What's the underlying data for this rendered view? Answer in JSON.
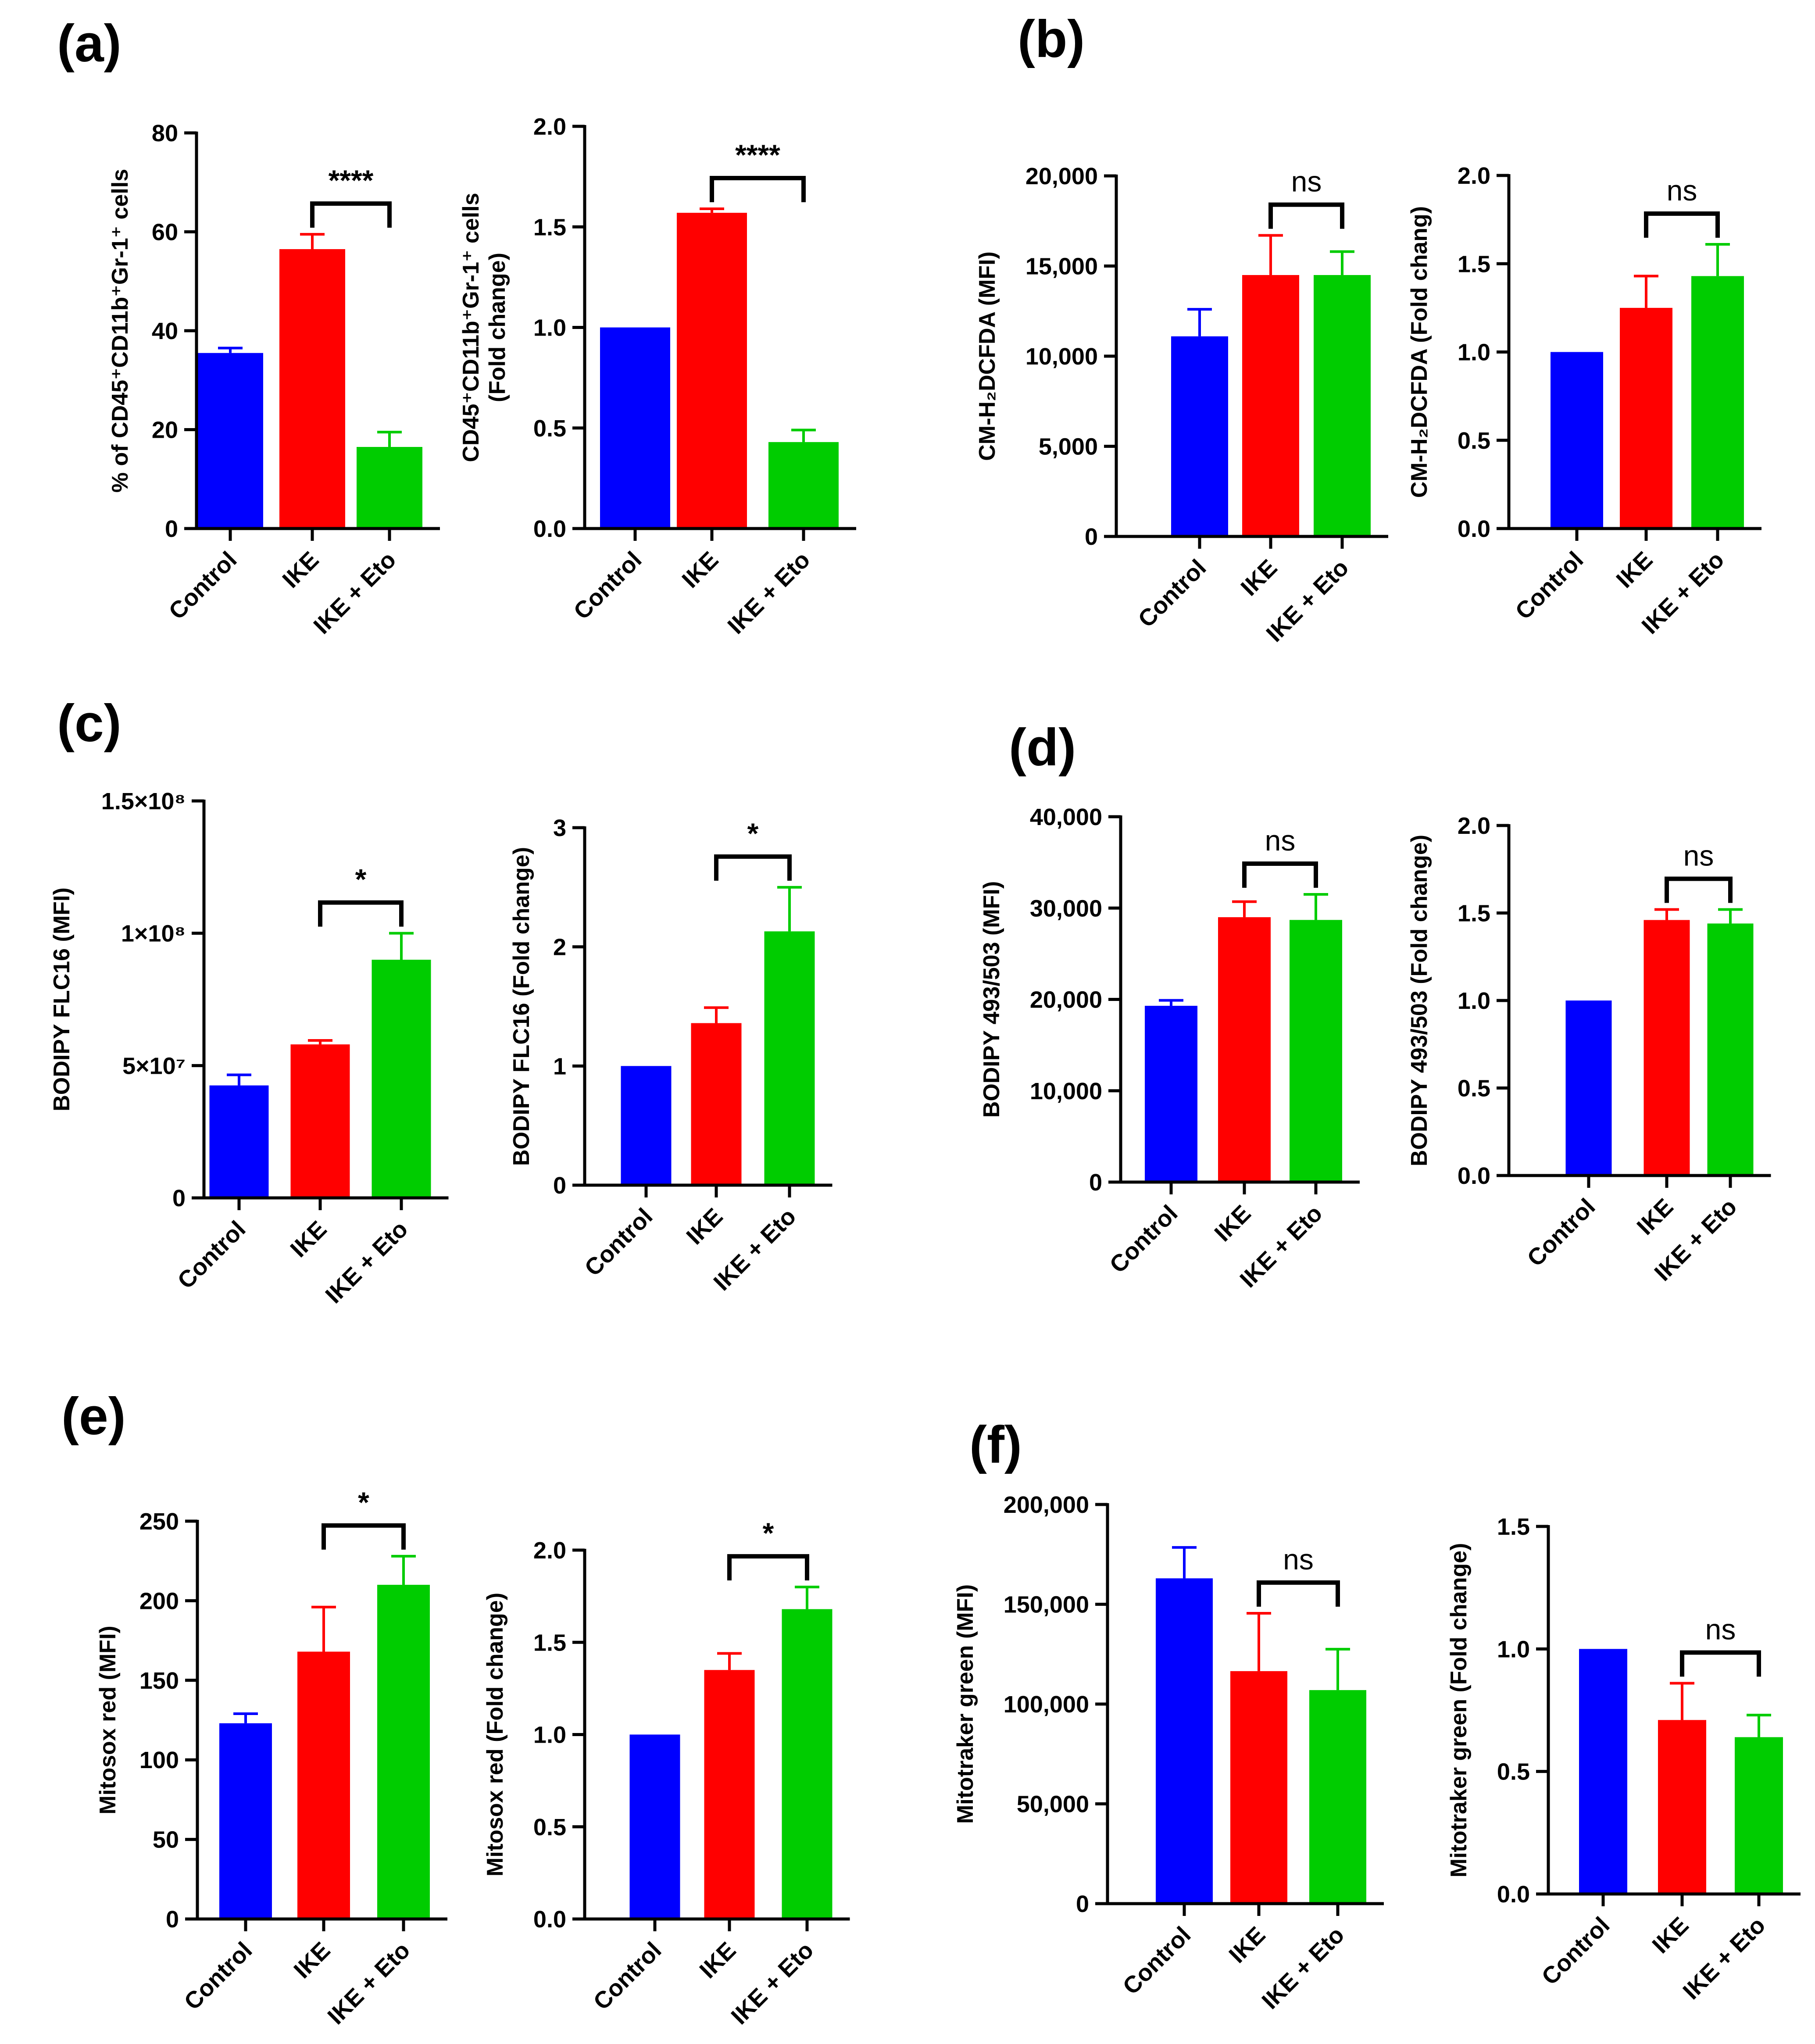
{
  "colors": {
    "Control": "#0000ff",
    "IKE": "#ff0000",
    "IKE + Eto": "#00cc00"
  },
  "panel_labels": [
    "(a)",
    "(b)",
    "(c)",
    "(d)",
    "(e)",
    "(f)"
  ],
  "chart_data": [
    {
      "id": "a1",
      "panel": "(a)",
      "type": "bar",
      "categories": [
        "Control",
        "IKE",
        "IKE + Eto"
      ],
      "values": [
        35.5,
        56.5,
        16.5
      ],
      "errors": [
        1.0,
        3.0,
        3.0
      ],
      "ylabel": "% of CD45⁺CD11b⁺Gr-1⁺ cells",
      "ylim": [
        0,
        80
      ],
      "yticks": [
        0,
        20,
        40,
        60,
        80
      ],
      "ytick_labels": [
        "0",
        "20",
        "40",
        "60",
        "80"
      ],
      "significance": {
        "from": "IKE",
        "to": "IKE + Eto",
        "label": "****"
      }
    },
    {
      "id": "a2",
      "panel": "(a)",
      "type": "bar",
      "categories": [
        "Control",
        "IKE",
        "IKE + Eto"
      ],
      "values": [
        1.0,
        1.57,
        0.43
      ],
      "errors": [
        0,
        0.02,
        0.06
      ],
      "ylabel": "CD45⁺CD11b⁺Gr-1⁺ cells",
      "ylabel2": "(Fold change)",
      "ylim": [
        0,
        2.0
      ],
      "yticks": [
        0,
        0.5,
        1.0,
        1.5,
        2.0
      ],
      "ytick_labels": [
        "0.0",
        "0.5",
        "1.0",
        "1.5",
        "2.0"
      ],
      "significance": {
        "from": "IKE",
        "to": "IKE + Eto",
        "label": "****"
      }
    },
    {
      "id": "b1",
      "panel": "(b)",
      "type": "bar",
      "categories": [
        "Control",
        "IKE",
        "IKE + Eto"
      ],
      "values": [
        11100,
        14500,
        14500
      ],
      "errors": [
        1500,
        2200,
        1300
      ],
      "ylabel": "CM-H₂DCFDA (MFI)",
      "ylim": [
        0,
        20000
      ],
      "yticks": [
        0,
        5000,
        10000,
        15000,
        20000
      ],
      "ytick_labels": [
        "0",
        "5,000",
        "10,000",
        "15,000",
        "20,000"
      ],
      "significance": {
        "from": "IKE",
        "to": "IKE + Eto",
        "label": "ns"
      }
    },
    {
      "id": "b2",
      "panel": "(b)",
      "type": "bar",
      "categories": [
        "Control",
        "IKE",
        "IKE + Eto"
      ],
      "values": [
        1.0,
        1.25,
        1.43
      ],
      "errors": [
        0,
        0.18,
        0.18
      ],
      "ylabel": "CM-H₂DCFDA (Fold chang)",
      "ylim": [
        0,
        2.0
      ],
      "yticks": [
        0,
        0.5,
        1.0,
        1.5,
        2.0
      ],
      "ytick_labels": [
        "0.0",
        "0.5",
        "1.0",
        "1.5",
        "2.0"
      ],
      "significance": {
        "from": "IKE",
        "to": "IKE + Eto",
        "label": "ns"
      }
    },
    {
      "id": "c1",
      "panel": "(c)",
      "type": "bar",
      "categories": [
        "Control",
        "IKE",
        "IKE + Eto"
      ],
      "values": [
        42500000,
        58000000,
        90000000
      ],
      "errors": [
        4000000,
        1500000,
        10000000
      ],
      "ylabel": "BODIPY FLC16 (MFI)",
      "ylim": [
        0,
        150000000
      ],
      "yticks": [
        0,
        50000000,
        100000000,
        150000000
      ],
      "ytick_labels": [
        "0",
        "5×10⁷",
        "1×10⁸",
        "1.5×10⁸"
      ],
      "significance": {
        "from": "IKE",
        "to": "IKE + Eto",
        "label": "*"
      }
    },
    {
      "id": "c2",
      "panel": "(c)",
      "type": "bar",
      "categories": [
        "Control",
        "IKE",
        "IKE + Eto"
      ],
      "values": [
        1.0,
        1.36,
        2.13
      ],
      "errors": [
        0,
        0.13,
        0.37
      ],
      "ylabel": "BODIPY FLC16 (Fold change)",
      "ylim": [
        0,
        3
      ],
      "yticks": [
        0,
        1,
        2,
        3
      ],
      "ytick_labels": [
        "0",
        "1",
        "2",
        "3"
      ],
      "significance": {
        "from": "IKE",
        "to": "IKE + Eto",
        "label": "*"
      }
    },
    {
      "id": "d1",
      "panel": "(d)",
      "type": "bar",
      "categories": [
        "Control",
        "IKE",
        "IKE + Eto"
      ],
      "values": [
        19300,
        29000,
        28700
      ],
      "errors": [
        600,
        1700,
        2800
      ],
      "ylabel": "BODIPY 493/503 (MFI)",
      "ylim": [
        0,
        40000
      ],
      "yticks": [
        0,
        10000,
        20000,
        30000,
        40000
      ],
      "ytick_labels": [
        "0",
        "10,000",
        "20,000",
        "30,000",
        "40,000"
      ],
      "significance": {
        "from": "IKE",
        "to": "IKE + Eto",
        "label": "ns"
      }
    },
    {
      "id": "d2",
      "panel": "(d)",
      "type": "bar",
      "categories": [
        "Control",
        "IKE",
        "IKE + Eto"
      ],
      "values": [
        1.0,
        1.46,
        1.44
      ],
      "errors": [
        0,
        0.06,
        0.08
      ],
      "ylabel": "BODIPY 493/503 (Fold change)",
      "ylim": [
        0,
        2.0
      ],
      "yticks": [
        0,
        0.5,
        1.0,
        1.5,
        2.0
      ],
      "ytick_labels": [
        "0.0",
        "0.5",
        "1.0",
        "1.5",
        "2.0"
      ],
      "significance": {
        "from": "IKE",
        "to": "IKE + Eto",
        "label": "ns"
      }
    },
    {
      "id": "e1",
      "panel": "(e)",
      "type": "bar",
      "categories": [
        "Control",
        "IKE",
        "IKE + Eto"
      ],
      "values": [
        123,
        168,
        210
      ],
      "errors": [
        6,
        28,
        18
      ],
      "ylabel": "Mitosox red (MFI)",
      "ylim": [
        0,
        250
      ],
      "yticks": [
        0,
        50,
        100,
        150,
        200,
        250
      ],
      "ytick_labels": [
        "0",
        "50",
        "100",
        "150",
        "200",
        "250"
      ],
      "significance": {
        "from": "IKE",
        "to": "IKE + Eto",
        "label": "*"
      }
    },
    {
      "id": "e2",
      "panel": "(e)",
      "type": "bar",
      "categories": [
        "Control",
        "IKE",
        "IKE + Eto"
      ],
      "values": [
        1.0,
        1.35,
        1.68
      ],
      "errors": [
        0,
        0.09,
        0.12
      ],
      "ylabel": "Mitosox red (Fold change)",
      "ylim": [
        0,
        2.0
      ],
      "yticks": [
        0,
        0.5,
        1.0,
        1.5,
        2.0
      ],
      "ytick_labels": [
        "0.0",
        "0.5",
        "1.0",
        "1.5",
        "2.0"
      ],
      "significance": {
        "from": "IKE",
        "to": "IKE + Eto",
        "label": "*"
      }
    },
    {
      "id": "f1",
      "panel": "(f)",
      "type": "bar",
      "categories": [
        "Control",
        "IKE",
        "IKE + Eto"
      ],
      "values": [
        163000,
        116500,
        107000
      ],
      "errors": [
        15500,
        29000,
        20500
      ],
      "ylabel": "Mitotraker green (MFI)",
      "ylim": [
        0,
        200000
      ],
      "yticks": [
        0,
        50000,
        100000,
        150000,
        200000
      ],
      "ytick_labels": [
        "0",
        "50,000",
        "100,000",
        "150,000",
        "200,000"
      ],
      "significance": {
        "from": "IKE",
        "to": "IKE + Eto",
        "label": "ns"
      }
    },
    {
      "id": "f2",
      "panel": "(f)",
      "type": "bar",
      "categories": [
        "Control",
        "IKE",
        "IKE + Eto"
      ],
      "values": [
        1.0,
        0.71,
        0.64
      ],
      "errors": [
        0,
        0.15,
        0.09
      ],
      "ylabel": "Mitotraker green (Fold change)",
      "ylim": [
        0,
        1.5
      ],
      "yticks": [
        0,
        0.5,
        1.0,
        1.5
      ],
      "ytick_labels": [
        "0.0",
        "0.5",
        "1.0",
        "1.5"
      ],
      "significance": {
        "from": "IKE",
        "to": "IKE + Eto",
        "label": "ns"
      }
    }
  ]
}
